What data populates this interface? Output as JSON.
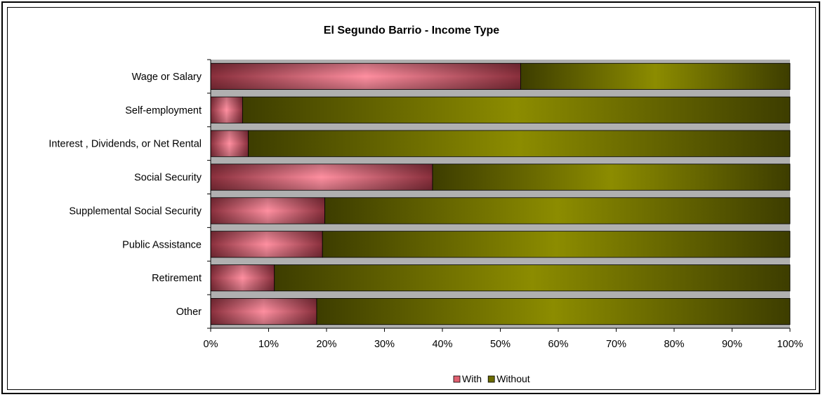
{
  "chart_data": {
    "type": "bar",
    "orientation": "horizontal",
    "stacked": "percent",
    "title": "El Segundo Barrio - Income Type",
    "categories": [
      "Wage or Salary",
      "Self-employment",
      "Interest , Dividends, or Net Rental",
      "Social Security",
      "Supplemental Social Security",
      "Public Assistance",
      "Retirement",
      "Other"
    ],
    "series": [
      {
        "name": "With",
        "color": "#e06070",
        "values": [
          53.5,
          5.5,
          6.5,
          38.3,
          19.7,
          19.3,
          11.0,
          18.3
        ]
      },
      {
        "name": "Without",
        "color": "#6b6b00",
        "values": [
          46.5,
          94.5,
          93.5,
          61.7,
          80.3,
          80.7,
          89.0,
          81.7
        ]
      }
    ],
    "xticks": [
      "0%",
      "10%",
      "20%",
      "30%",
      "40%",
      "50%",
      "60%",
      "70%",
      "80%",
      "90%",
      "100%"
    ],
    "xlim": [
      0,
      100
    ],
    "legend_position": "bottom",
    "plot_background": "#b0b0b0"
  }
}
